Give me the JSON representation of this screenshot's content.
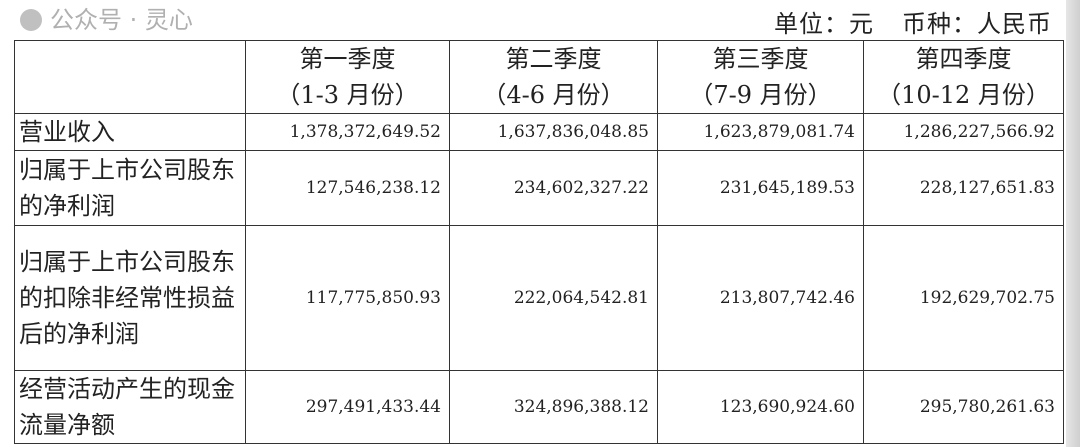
{
  "unit": {
    "unit_label": "单位：元",
    "currency_label": "币种：人民币"
  },
  "table": {
    "headers": [
      {
        "line1": "第一季度",
        "line2": "（1-3 月份）"
      },
      {
        "line1": "第二季度",
        "line2": "（4-6 月份）"
      },
      {
        "line1": "第三季度",
        "line2": "（7-9 月份）"
      },
      {
        "line1": "第四季度",
        "line2": "（10-12 月份）"
      }
    ],
    "rows": [
      {
        "label": "营业收入",
        "values": [
          "1,378,372,649.52",
          "1,637,836,048.85",
          "1,623,879,081.74",
          "1,286,227,566.92"
        ]
      },
      {
        "label": "归属于上市公司股东的净利润",
        "values": [
          "127,546,238.12",
          "234,602,327.22",
          "231,645,189.53",
          "228,127,651.83"
        ]
      },
      {
        "label": "归属于上市公司股东的扣除非经常性损益后的净利润",
        "values": [
          "117,775,850.93",
          "222,064,542.81",
          "213,807,742.46",
          "192,629,702.75"
        ]
      },
      {
        "label": "经营活动产生的现金流量净额",
        "values": [
          "297,491,433.44",
          "324,896,388.12",
          "123,690,924.60",
          "295,780,261.63"
        ]
      }
    ]
  },
  "watermark": "公众号 · 灵心"
}
